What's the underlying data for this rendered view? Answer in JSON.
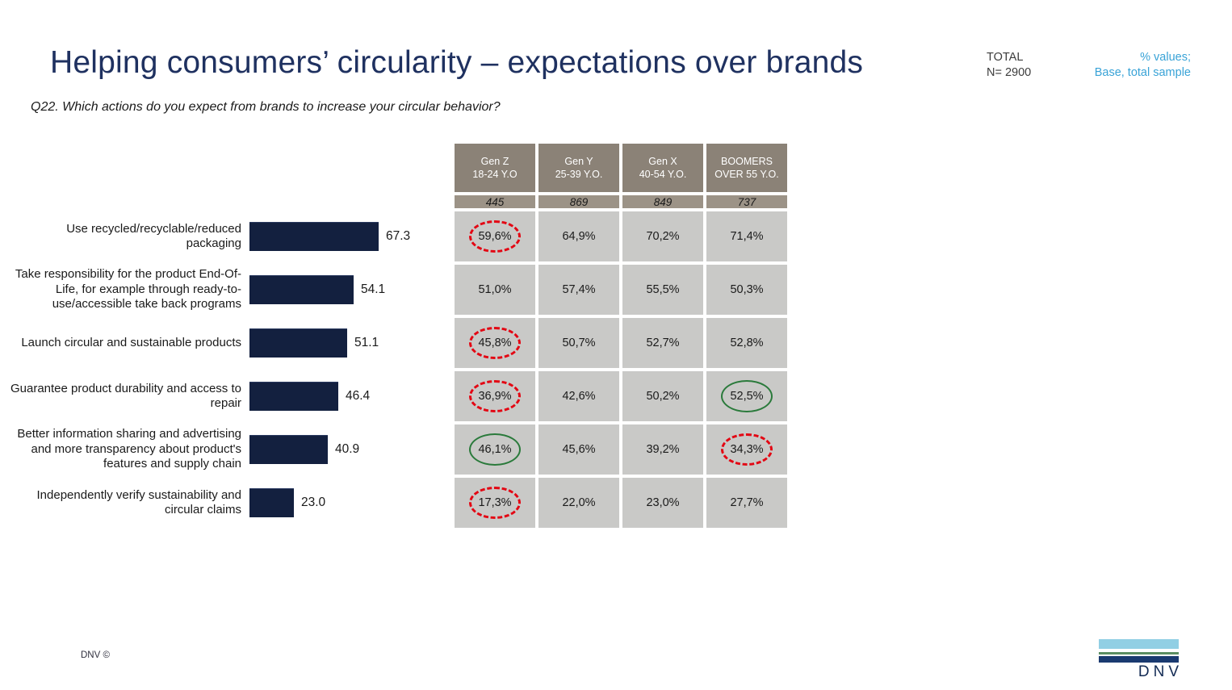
{
  "slide": {
    "title": "Helping consumers’ circularity – expectations over brands",
    "question": "Q22. Which actions do you expect from brands to increase your circular behavior?",
    "total_label": "TOTAL",
    "total_n": "N= 2900",
    "note_line1": "% values;",
    "note_line2": "Base, total sample",
    "footer_left": "DNV ©",
    "logo_text": "DNV"
  },
  "table": {
    "columns": [
      {
        "gen": "Gen Z",
        "age": "18-24 Y.O",
        "base": "445"
      },
      {
        "gen": "Gen Y",
        "age": "25-39 Y.O.",
        "base": "869"
      },
      {
        "gen": "Gen X",
        "age": "40-54 Y.O.",
        "base": "849"
      },
      {
        "gen": "BOOMERS",
        "age": "OVER 55 Y.O.",
        "base": "737"
      }
    ]
  },
  "rows": [
    {
      "label": "Use recycled/recyclable/reduced packaging",
      "value": "67.3",
      "bar_px": "160px",
      "cells": [
        {
          "value": "59,6%",
          "hl": "hl-red"
        },
        {
          "value": "64,9%",
          "hl": ""
        },
        {
          "value": "70,2%",
          "hl": ""
        },
        {
          "value": "71,4%",
          "hl": ""
        }
      ]
    },
    {
      "label": "Take responsibility for the product End-Of-Life, for example through ready-to-use/accessible take back programs",
      "value": "54.1",
      "bar_px": "129px",
      "cells": [
        {
          "value": "51,0%",
          "hl": ""
        },
        {
          "value": "57,4%",
          "hl": ""
        },
        {
          "value": "55,5%",
          "hl": ""
        },
        {
          "value": "50,3%",
          "hl": ""
        }
      ]
    },
    {
      "label": "Launch circular and sustainable products",
      "value": "51.1",
      "bar_px": "121px",
      "cells": [
        {
          "value": "45,8%",
          "hl": "hl-red"
        },
        {
          "value": "50,7%",
          "hl": ""
        },
        {
          "value": "52,7%",
          "hl": ""
        },
        {
          "value": "52,8%",
          "hl": ""
        }
      ]
    },
    {
      "label": "Guarantee product durability and access to repair",
      "value": "46.4",
      "bar_px": "110px",
      "cells": [
        {
          "value": "36,9%",
          "hl": "hl-red"
        },
        {
          "value": "42,6%",
          "hl": ""
        },
        {
          "value": "50,2%",
          "hl": ""
        },
        {
          "value": "52,5%",
          "hl": "hl-green"
        }
      ]
    },
    {
      "label": "Better information sharing and advertising and more transparency about product's features and supply chain",
      "value": "40.9",
      "bar_px": "97px",
      "cells": [
        {
          "value": "46,1%",
          "hl": "hl-green"
        },
        {
          "value": "45,6%",
          "hl": ""
        },
        {
          "value": "39,2%",
          "hl": ""
        },
        {
          "value": "34,3%",
          "hl": "hl-red"
        }
      ]
    },
    {
      "label": "Independently verify sustainability and circular claims",
      "value": "23.0",
      "bar_px": "55px",
      "cells": [
        {
          "value": "17,3%",
          "hl": "hl-red"
        },
        {
          "value": "22,0%",
          "hl": ""
        },
        {
          "value": "23,0%",
          "hl": ""
        },
        {
          "value": "27,7%",
          "hl": ""
        }
      ]
    }
  ],
  "chart_data": {
    "type": "bar",
    "orientation": "horizontal",
    "title": "Helping consumers’ circularity – expectations over brands",
    "subtitle": "Q22. Which actions do you expect from brands to increase your circular behavior?",
    "categories": [
      "Use recycled/recyclable/reduced packaging",
      "Take responsibility for the product End-Of-Life, for example through ready-to-use/accessible take back programs",
      "Launch circular and sustainable products",
      "Guarantee product durability and access to repair",
      "Better information sharing and advertising and more transparency about product's features and supply chain",
      "Independently verify sustainability and circular claims"
    ],
    "values": [
      67.3,
      54.1,
      51.1,
      46.4,
      40.9,
      23.0
    ],
    "xlabel": "",
    "ylabel": "",
    "xlim": [
      0,
      100
    ],
    "grid": false,
    "legend": false,
    "total_base": 2900,
    "breakdown_table": {
      "columns": [
        "Gen Z 18-24 Y.O",
        "Gen Y 25-39 Y.O.",
        "Gen X 40-54 Y.O.",
        "BOOMERS OVER 55 Y.O."
      ],
      "base": [
        445,
        869,
        849,
        737
      ],
      "values_pct": [
        [
          59.6,
          64.9,
          70.2,
          71.4
        ],
        [
          51.0,
          57.4,
          55.5,
          50.3
        ],
        [
          45.8,
          50.7,
          52.7,
          52.8
        ],
        [
          36.9,
          42.6,
          50.2,
          52.5
        ],
        [
          46.1,
          45.6,
          39.2,
          34.3
        ],
        [
          17.3,
          22.0,
          23.0,
          27.7
        ]
      ],
      "highlights": {
        "red_dashed_low": [
          [
            0,
            0
          ],
          [
            2,
            0
          ],
          [
            3,
            0
          ],
          [
            4,
            3
          ],
          [
            5,
            0
          ]
        ],
        "green_high": [
          [
            3,
            3
          ],
          [
            4,
            0
          ]
        ]
      }
    }
  },
  "colors": {
    "title_navy": "#1f3160",
    "bar_navy": "#13203f",
    "header_taupe": "#8b8277",
    "base_row_taupe": "#9c9387",
    "cell_gray": "#c9c9c7",
    "note_blue": "#39a3d7",
    "highlight_red": "#e30613",
    "highlight_green": "#2a7a3b",
    "logo_light_blue": "#91cfe4",
    "logo_green": "#5c8f62",
    "logo_navy": "#1a3a70"
  }
}
